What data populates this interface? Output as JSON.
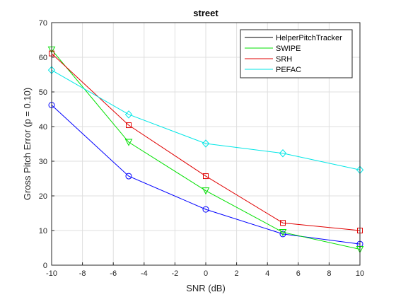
{
  "chart_data": {
    "type": "line",
    "title": "street",
    "xlabel": "SNR (dB)",
    "ylabel": "Gross Pitch Error (p = 0.10)",
    "xlim": [
      -10,
      10
    ],
    "ylim": [
      0,
      70
    ],
    "xticks": [
      -10,
      -8,
      -6,
      -4,
      -2,
      0,
      2,
      4,
      6,
      8,
      10
    ],
    "yticks": [
      0,
      10,
      20,
      30,
      40,
      50,
      60,
      70
    ],
    "grid": true,
    "legend_position": "top-right",
    "legend_entries": [
      "HelperPitchTracker",
      "SWIPE",
      "SRH",
      "PEFAC"
    ],
    "series": [
      {
        "name": "HelperPitchTracker",
        "color": "#0000ff",
        "legend_color": "#000000",
        "marker": "circle",
        "x": [
          -10,
          -5,
          0,
          5,
          10
        ],
        "y": [
          46.2,
          25.7,
          16.1,
          9.0,
          6.1
        ]
      },
      {
        "name": "SWIPE",
        "color": "#00e000",
        "legend_color": "#00e000",
        "marker": "triangle-down",
        "x": [
          -10,
          -5,
          0,
          5,
          10
        ],
        "y": [
          62.2,
          35.5,
          21.5,
          9.5,
          4.6
        ]
      },
      {
        "name": "SRH",
        "color": "#e00000",
        "legend_color": "#e00000",
        "marker": "square",
        "x": [
          -10,
          -5,
          0,
          5,
          10
        ],
        "y": [
          61.1,
          40.4,
          25.7,
          12.2,
          10.0
        ]
      },
      {
        "name": "PEFAC",
        "color": "#00e6e6",
        "legend_color": "#00e6e6",
        "marker": "diamond",
        "x": [
          -10,
          -5,
          0,
          5,
          10
        ],
        "y": [
          56.3,
          43.5,
          35.1,
          32.3,
          27.5
        ]
      }
    ]
  }
}
